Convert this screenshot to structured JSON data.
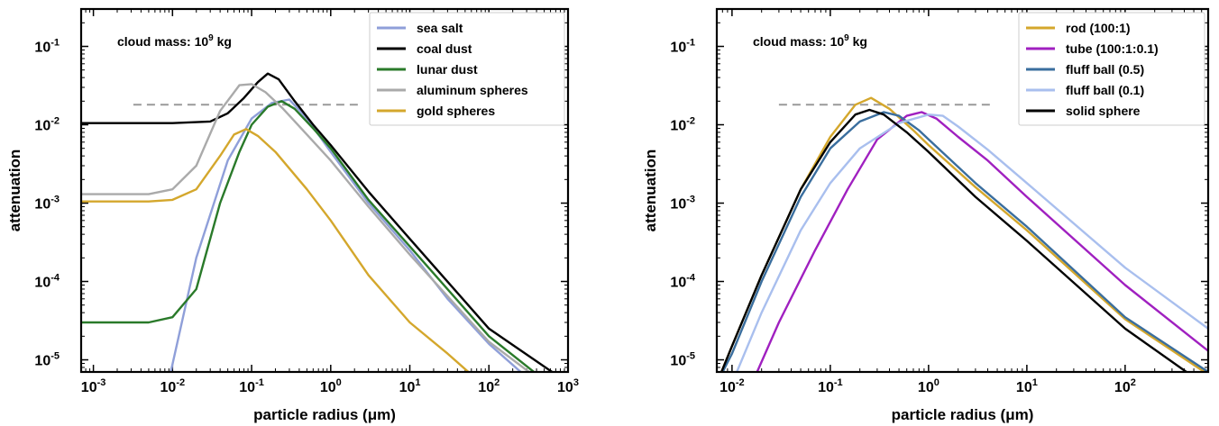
{
  "chart_data": [
    {
      "type": "line",
      "xlabel": "particle radius (μm)",
      "ylabel": "attenuation",
      "xscale": "log",
      "yscale": "log",
      "xlim": [
        0.0007,
        1000
      ],
      "ylim": [
        7e-06,
        0.3
      ],
      "xticks": [
        {
          "value": 0.001,
          "base": "10",
          "exp": "-3"
        },
        {
          "value": 0.01,
          "base": "10",
          "exp": "-2"
        },
        {
          "value": 0.1,
          "base": "10",
          "exp": "-1"
        },
        {
          "value": 1,
          "base": "10",
          "exp": "0"
        },
        {
          "value": 10,
          "base": "10",
          "exp": "1"
        },
        {
          "value": 100,
          "base": "10",
          "exp": "2"
        },
        {
          "value": 1000,
          "base": "10",
          "exp": "3"
        }
      ],
      "yticks": [
        {
          "value": 1e-05,
          "base": "10",
          "exp": "-5"
        },
        {
          "value": 0.0001,
          "base": "10",
          "exp": "-4"
        },
        {
          "value": 0.001,
          "base": "10",
          "exp": "-3"
        },
        {
          "value": 0.01,
          "base": "10",
          "exp": "-2"
        },
        {
          "value": 0.1,
          "base": "10",
          "exp": "-1"
        }
      ],
      "annotation": {
        "text": "cloud mass: 10",
        "sup": "9",
        "suffix": " kg"
      },
      "reference_line": {
        "y": 0.018,
        "x_range": [
          0.0032,
          2.2
        ],
        "style": "dashed",
        "color": "#999999"
      },
      "legend": {
        "location": "top-right"
      },
      "series": [
        {
          "name": "sea salt",
          "color": "#8f9fd9",
          "points": [
            [
              0.0095,
              7e-06
            ],
            [
              0.02,
              0.0002
            ],
            [
              0.05,
              0.0035
            ],
            [
              0.1,
              0.012
            ],
            [
              0.18,
              0.019
            ],
            [
              0.3,
              0.021
            ],
            [
              0.5,
              0.012
            ],
            [
              1,
              0.0045
            ],
            [
              3,
              0.001
            ],
            [
              10,
              0.00025
            ],
            [
              30,
              6e-05
            ],
            [
              100,
              1.6e-05
            ],
            [
              300,
              6e-06
            ],
            [
              600,
              4e-06
            ]
          ]
        },
        {
          "name": "coal dust",
          "color": "#000000",
          "points": [
            [
              0.0007,
              0.0105
            ],
            [
              0.01,
              0.0105
            ],
            [
              0.03,
              0.011
            ],
            [
              0.05,
              0.014
            ],
            [
              0.08,
              0.022
            ],
            [
              0.12,
              0.035
            ],
            [
              0.16,
              0.045
            ],
            [
              0.22,
              0.038
            ],
            [
              0.35,
              0.02
            ],
            [
              0.6,
              0.01
            ],
            [
              1,
              0.0055
            ],
            [
              3,
              0.0014
            ],
            [
              10,
              0.00035
            ],
            [
              100,
              2.5e-05
            ],
            [
              700,
              6.5e-06
            ]
          ]
        },
        {
          "name": "lunar dust",
          "color": "#2a7a2a",
          "points": [
            [
              0.0007,
              3e-05
            ],
            [
              0.005,
              3e-05
            ],
            [
              0.01,
              3.5e-05
            ],
            [
              0.02,
              8e-05
            ],
            [
              0.04,
              0.001
            ],
            [
              0.07,
              0.0045
            ],
            [
              0.1,
              0.01
            ],
            [
              0.16,
              0.017
            ],
            [
              0.24,
              0.02
            ],
            [
              0.35,
              0.016
            ],
            [
              0.6,
              0.009
            ],
            [
              1,
              0.005
            ],
            [
              3,
              0.0011
            ],
            [
              10,
              0.00028
            ],
            [
              100,
              2e-05
            ],
            [
              500,
              5.5e-06
            ]
          ]
        },
        {
          "name": "aluminum spheres",
          "color": "#aaaaaa",
          "points": [
            [
              0.0007,
              0.0013
            ],
            [
              0.005,
              0.0013
            ],
            [
              0.01,
              0.0015
            ],
            [
              0.02,
              0.003
            ],
            [
              0.04,
              0.015
            ],
            [
              0.07,
              0.032
            ],
            [
              0.1,
              0.033
            ],
            [
              0.15,
              0.026
            ],
            [
              0.25,
              0.016
            ],
            [
              0.5,
              0.0075
            ],
            [
              1,
              0.0035
            ],
            [
              3,
              0.0009
            ],
            [
              10,
              0.00022
            ],
            [
              100,
              1.7e-05
            ],
            [
              500,
              5e-06
            ]
          ]
        },
        {
          "name": "gold spheres",
          "color": "#d4a72c",
          "points": [
            [
              0.0007,
              0.00105
            ],
            [
              0.005,
              0.00105
            ],
            [
              0.01,
              0.0011
            ],
            [
              0.02,
              0.0015
            ],
            [
              0.04,
              0.004
            ],
            [
              0.06,
              0.0075
            ],
            [
              0.085,
              0.0088
            ],
            [
              0.12,
              0.0072
            ],
            [
              0.2,
              0.0045
            ],
            [
              0.5,
              0.0015
            ],
            [
              1,
              0.0006
            ],
            [
              3,
              0.00012
            ],
            [
              10,
              3e-05
            ],
            [
              30,
              1.2e-05
            ],
            [
              80,
              5e-06
            ]
          ]
        }
      ]
    },
    {
      "type": "line",
      "xlabel": "particle radius (μm)",
      "ylabel": "attenuation",
      "xscale": "log",
      "yscale": "log",
      "xlim": [
        0.007,
        700
      ],
      "ylim": [
        7e-06,
        0.3
      ],
      "xticks": [
        {
          "value": 0.01,
          "base": "10",
          "exp": "-2"
        },
        {
          "value": 0.1,
          "base": "10",
          "exp": "-1"
        },
        {
          "value": 1,
          "base": "10",
          "exp": "0"
        },
        {
          "value": 10,
          "base": "10",
          "exp": "1"
        },
        {
          "value": 100,
          "base": "10",
          "exp": "2"
        }
      ],
      "yticks": [
        {
          "value": 1e-05,
          "base": "10",
          "exp": "-5"
        },
        {
          "value": 0.0001,
          "base": "10",
          "exp": "-4"
        },
        {
          "value": 0.001,
          "base": "10",
          "exp": "-3"
        },
        {
          "value": 0.01,
          "base": "10",
          "exp": "-2"
        },
        {
          "value": 0.1,
          "base": "10",
          "exp": "-1"
        }
      ],
      "annotation": {
        "text": "cloud mass: 10",
        "sup": "9",
        "suffix": " kg"
      },
      "reference_line": {
        "y": 0.018,
        "x_range": [
          0.03,
          4.2
        ],
        "style": "dashed",
        "color": "#999999"
      },
      "legend": {
        "location": "top-right"
      },
      "series": [
        {
          "name": "rod (100:1)",
          "color": "#d4a72c",
          "points": [
            [
              0.007,
              5e-06
            ],
            [
              0.01,
              1.5e-05
            ],
            [
              0.02,
              0.00012
            ],
            [
              0.05,
              0.0015
            ],
            [
              0.1,
              0.007
            ],
            [
              0.18,
              0.018
            ],
            [
              0.26,
              0.022
            ],
            [
              0.4,
              0.016
            ],
            [
              0.7,
              0.0085
            ],
            [
              1,
              0.0055
            ],
            [
              3,
              0.0016
            ],
            [
              10,
              0.00045
            ],
            [
              100,
              3.3e-05
            ],
            [
              700,
              6.5e-06
            ]
          ]
        },
        {
          "name": "tube (100:1:0.1)",
          "color": "#a020c0",
          "points": [
            [
              0.016,
              5e-06
            ],
            [
              0.03,
              3e-05
            ],
            [
              0.07,
              0.00025
            ],
            [
              0.15,
              0.0015
            ],
            [
              0.3,
              0.0065
            ],
            [
              0.6,
              0.013
            ],
            [
              0.85,
              0.0145
            ],
            [
              1.2,
              0.012
            ],
            [
              2,
              0.007
            ],
            [
              4,
              0.0035
            ],
            [
              10,
              0.0012
            ],
            [
              100,
              9e-05
            ],
            [
              700,
              1.3e-05
            ]
          ]
        },
        {
          "name": "fluff ball (0.5)",
          "color": "#3a6e9e",
          "points": [
            [
              0.007,
              5e-06
            ],
            [
              0.01,
              1.2e-05
            ],
            [
              0.02,
              0.0001
            ],
            [
              0.05,
              0.0012
            ],
            [
              0.1,
              0.005
            ],
            [
              0.2,
              0.011
            ],
            [
              0.35,
              0.0145
            ],
            [
              0.5,
              0.013
            ],
            [
              0.8,
              0.0085
            ],
            [
              1,
              0.0065
            ],
            [
              3,
              0.0018
            ],
            [
              10,
              0.0005
            ],
            [
              100,
              3.5e-05
            ],
            [
              700,
              7e-06
            ]
          ]
        },
        {
          "name": "fluff ball (0.1)",
          "color": "#a9bfee",
          "points": [
            [
              0.01,
              5e-06
            ],
            [
              0.02,
              4e-05
            ],
            [
              0.05,
              0.00045
            ],
            [
              0.1,
              0.0018
            ],
            [
              0.2,
              0.005
            ],
            [
              0.5,
              0.0105
            ],
            [
              1,
              0.0135
            ],
            [
              1.4,
              0.013
            ],
            [
              2,
              0.0095
            ],
            [
              4,
              0.0048
            ],
            [
              10,
              0.0018
            ],
            [
              100,
              0.00015
            ],
            [
              700,
              2.5e-05
            ]
          ]
        },
        {
          "name": "solid sphere",
          "color": "#000000",
          "points": [
            [
              0.007,
              5e-06
            ],
            [
              0.01,
              1.5e-05
            ],
            [
              0.02,
              0.00012
            ],
            [
              0.05,
              0.0015
            ],
            [
              0.1,
              0.006
            ],
            [
              0.18,
              0.0135
            ],
            [
              0.25,
              0.0155
            ],
            [
              0.35,
              0.0135
            ],
            [
              0.6,
              0.008
            ],
            [
              1,
              0.0045
            ],
            [
              3,
              0.0012
            ],
            [
              10,
              0.00033
            ],
            [
              100,
              2.5e-05
            ],
            [
              500,
              6e-06
            ]
          ]
        }
      ]
    }
  ]
}
